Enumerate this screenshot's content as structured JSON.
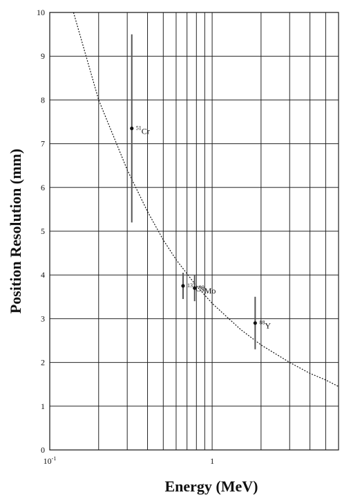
{
  "chart_data": {
    "type": "scatter",
    "title": "",
    "xlabel": "Energy (MeV)",
    "ylabel": "Position Resolution (mm)",
    "x_scale": "log",
    "xlim": [
      0.1,
      6
    ],
    "ylim": [
      0,
      10
    ],
    "grid": true,
    "y_ticks": [
      "0",
      "1",
      "2",
      "3",
      "4",
      "5",
      "6",
      "7",
      "8",
      "9",
      "10"
    ],
    "x_tick_labels": [
      {
        "value": 0.1,
        "base": "10",
        "exp": "-1"
      },
      {
        "value": 1,
        "base": "1",
        "exp": ""
      }
    ],
    "points": [
      {
        "isotope_mass": "51",
        "isotope": "Cr",
        "x": 0.32,
        "y": 7.35,
        "err_low": 5.2,
        "err_high": 9.5
      },
      {
        "isotope_mass": "137",
        "isotope": "Cs",
        "x": 0.662,
        "y": 3.75,
        "err_low": 3.45,
        "err_high": 4.05
      },
      {
        "isotope_mass": "99",
        "isotope": "Mo",
        "x": 0.78,
        "y": 3.7,
        "err_low": 3.4,
        "err_high": 4.0
      },
      {
        "isotope_mass": "88",
        "isotope": "Y",
        "x": 1.84,
        "y": 2.9,
        "err_low": 2.3,
        "err_high": 3.5
      }
    ],
    "fit_curve": {
      "style": "dotted",
      "x": [
        0.14,
        0.2,
        0.3,
        0.4,
        0.5,
        0.6,
        0.8,
        1.0,
        1.5,
        2.0,
        3.0,
        4.0,
        5.0,
        6.0
      ],
      "y": [
        10.0,
        8.0,
        6.4,
        5.45,
        4.8,
        4.35,
        3.75,
        3.35,
        2.75,
        2.4,
        2.0,
        1.75,
        1.6,
        1.45
      ]
    }
  }
}
